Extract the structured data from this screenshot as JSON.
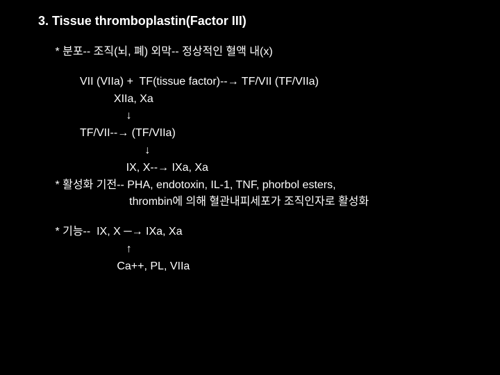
{
  "slide": {
    "background_color": "#000000",
    "text_color": "#ffffff",
    "title_fontsize": 18,
    "body_fontsize": 16,
    "title": "3. Tissue thromboplastin(Factor III)",
    "lines": [
      {
        "cls": "indent1 block1",
        "text": " * 분포-- 조직(뇌, 폐) 외막-- 정상적인 혈액 내(x)"
      },
      {
        "cls": "indent2 block2",
        "text": "VII (VIIa) +  TF(tissue factor)--→ TF/VII (TF/VIIa)"
      },
      {
        "cls": "indent2",
        "text": "           XIIa, Xa"
      },
      {
        "cls": "indent2",
        "text": "               ↓"
      },
      {
        "cls": "indent2",
        "text": "TF/VII--→ (TF/VIIa)"
      },
      {
        "cls": "indent2",
        "text": "                     ↓"
      },
      {
        "cls": "indent2",
        "text": "               IX, X--→ IXa, Xa"
      },
      {
        "cls": "indent1",
        "text": " * 활성화 기전-- PHA, endotoxin, IL-1, TNF, phorbol esters,"
      },
      {
        "cls": "indent2",
        "text": "                thrombin에 의해 혈관내피세포가 조직인자로 활성화"
      },
      {
        "cls": "indent1 block2",
        "text": " * 기능--  IX, X ─→ IXa, Xa"
      },
      {
        "cls": "indent1",
        "text": "                        ↑"
      },
      {
        "cls": "indent1",
        "text": "                     Ca++, PL, VIIa"
      }
    ]
  }
}
